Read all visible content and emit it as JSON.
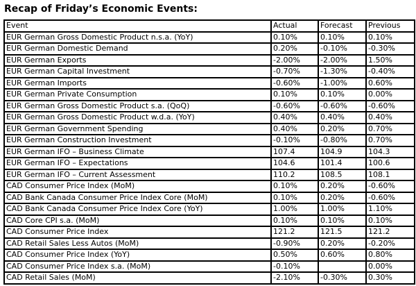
{
  "page_title": "Recap of Friday’s Economic Events:",
  "table": {
    "headers": [
      "Event",
      "Actual",
      "Forecast",
      "Previous"
    ],
    "rows": [
      [
        "EUR German Gross Domestic Product n.s.a. (YoY)",
        "0.10%",
        "0.10%",
        "0.10%"
      ],
      [
        "EUR German Domestic Demand",
        "0.20%",
        "-0.10%",
        "-0.30%"
      ],
      [
        "EUR German Exports",
        "-2.00%",
        "-2.00%",
        "1.50%"
      ],
      [
        "EUR German Capital Investment",
        "-0.70%",
        "-1.30%",
        "-0.40%"
      ],
      [
        "EUR German Imports",
        "-0.60%",
        "-1.00%",
        "0.60%"
      ],
      [
        "EUR German Private Consumption",
        "0.10%",
        "0.10%",
        "0.00%"
      ],
      [
        "EUR German Gross Domestic Product s.a. (QoQ)",
        "-0.60%",
        "-0.60%",
        "-0.60%"
      ],
      [
        "EUR German Gross Domestic Product w.d.a. (YoY)",
        "0.40%",
        "0.40%",
        "0.40%"
      ],
      [
        "EUR German Government Spending",
        "0.40%",
        "0.20%",
        "0.70%"
      ],
      [
        "EUR German Construction Investment",
        "-0.10%",
        "-0.80%",
        "0.70%"
      ],
      [
        "EUR German IFO – Business Climate",
        "107.4",
        "104.9",
        "104.3"
      ],
      [
        "EUR German IFO – Expectations",
        "104.6",
        "101.4",
        "100.6"
      ],
      [
        "EUR German IFO – Current Assessment",
        "110.2",
        "108.5",
        "108.1"
      ],
      [
        "CAD Consumer Price Index (MoM)",
        "0.10%",
        "0.20%",
        "-0.60%"
      ],
      [
        "CAD Bank Canada Consumer Price Index Core (MoM)",
        "0.10%",
        "0.20%",
        "-0.60%"
      ],
      [
        "CAD Bank Canada Consumer Price Index Core (YoY)",
        "1.00%",
        "1.00%",
        "1.10%"
      ],
      [
        "CAD Core CPI s.a. (MoM)",
        "0.10%",
        "0.10%",
        "0.10%"
      ],
      [
        "CAD Consumer Price Index",
        "121.2",
        "121.5",
        "121.2"
      ],
      [
        "CAD Retail Sales Less Autos (MoM)",
        "-0.90%",
        "0.20%",
        "-0.20%"
      ],
      [
        "CAD Consumer Price Index (YoY)",
        "0.50%",
        "0.60%",
        "0.80%"
      ],
      [
        "CAD Consumer Price Index s.a. (MoM)",
        "-0.10%",
        "",
        "0.00%"
      ],
      [
        "CAD Retail Sales (MoM)",
        "-2.10%",
        "-0.30%",
        "0.30%"
      ]
    ]
  },
  "colors": {
    "text": "#000000",
    "border": "#000000",
    "background": "#ffffff"
  }
}
